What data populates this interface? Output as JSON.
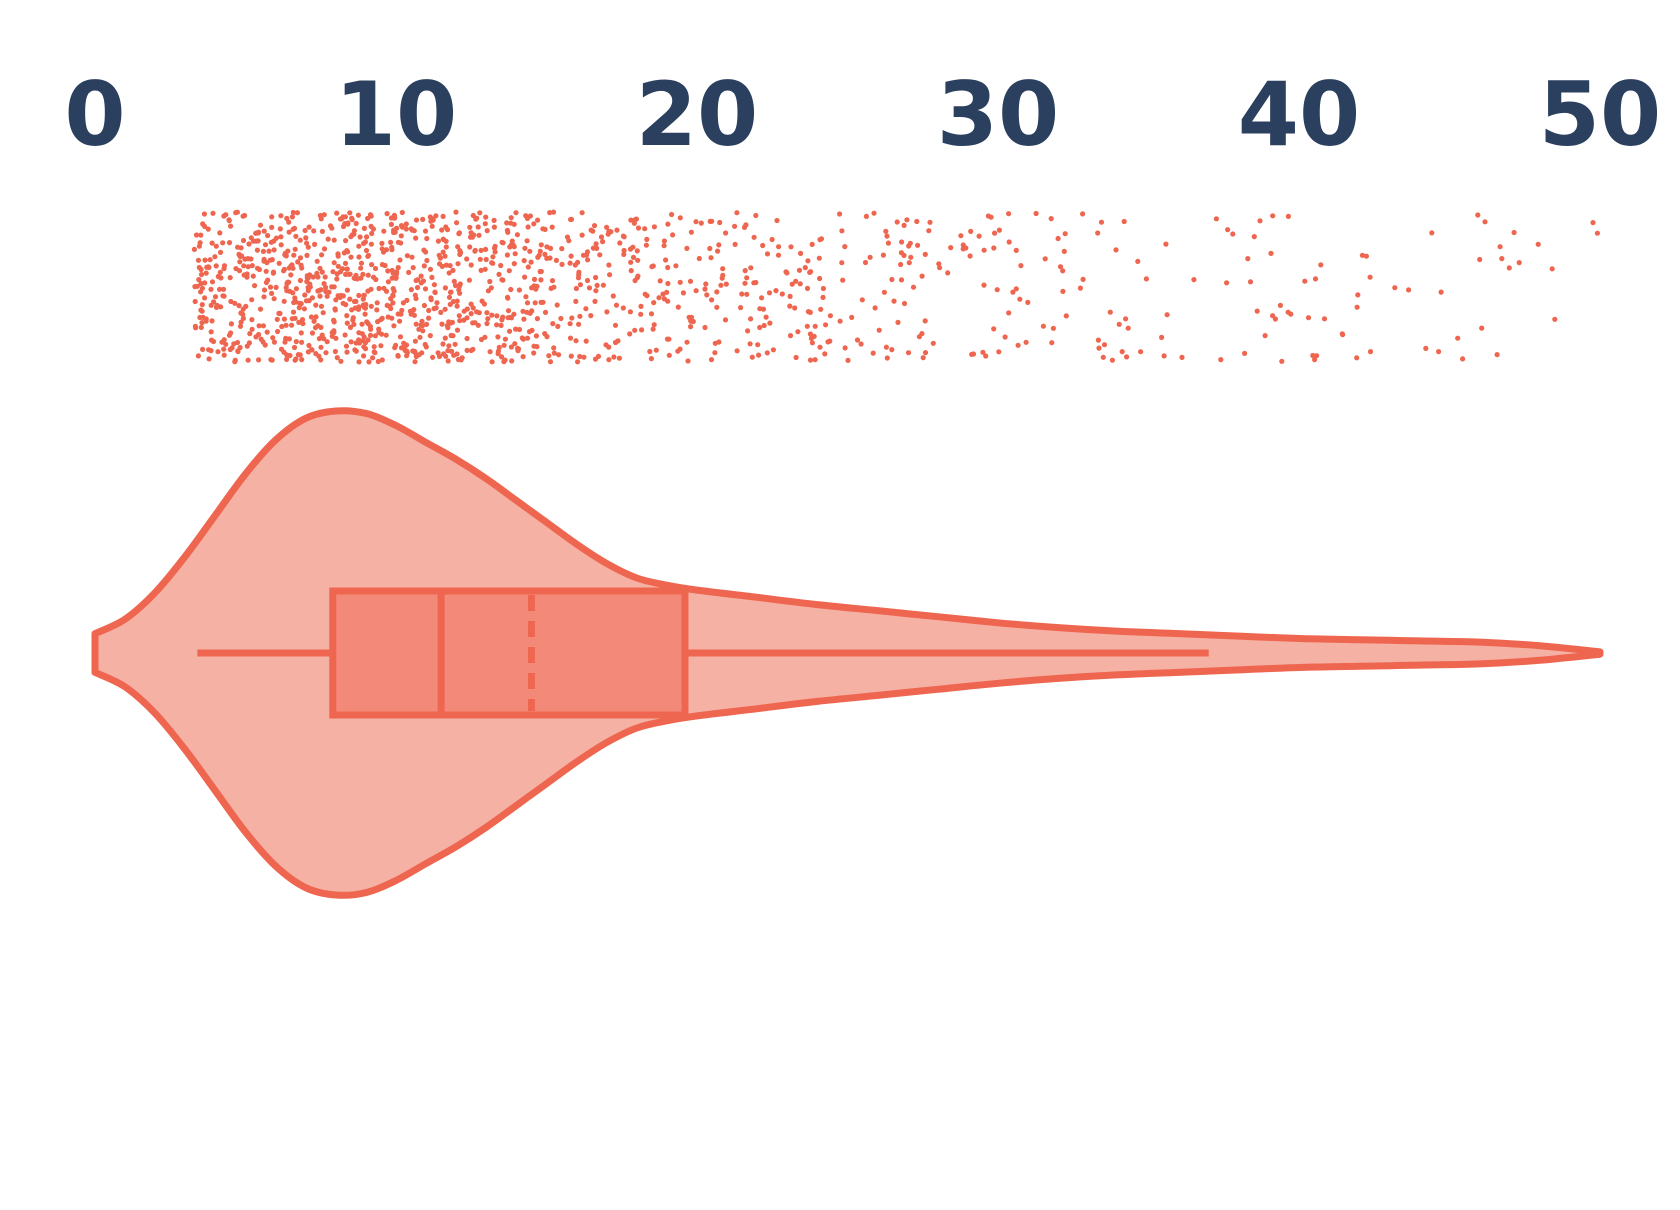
{
  "chart_data": {
    "type": "violin",
    "orientation": "horizontal",
    "title": "",
    "xlabel": "",
    "ylabel": "",
    "xlim": [
      0,
      50
    ],
    "x_ticks": [
      0,
      10,
      20,
      30,
      40,
      50
    ],
    "x_tick_labels": [
      "0",
      "10",
      "20",
      "30",
      "40",
      "50"
    ],
    "x_axis_position": "top",
    "grid": false,
    "legend": "none",
    "colors": {
      "accent": "#ee6650",
      "violin_fill": "#f6b1a5",
      "box_fill": "#f38a79",
      "tick_text": "#2b3f5e"
    },
    "box": {
      "whisker_low": 3.4,
      "q1": 7.9,
      "median": 11.5,
      "mean": 14.5,
      "q3": 19.6,
      "whisker_high": 37.0
    },
    "density_profile": {
      "x": [
        0,
        1,
        2,
        3,
        4,
        5,
        6,
        7,
        8,
        9,
        10,
        11,
        12,
        13,
        14,
        15,
        16,
        17,
        18,
        19,
        20,
        22,
        24,
        26,
        28,
        30,
        32,
        34,
        36,
        38,
        40,
        42,
        44,
        46,
        48,
        50
      ],
      "relative_width": [
        0.08,
        0.14,
        0.25,
        0.4,
        0.57,
        0.74,
        0.88,
        0.97,
        1.0,
        0.99,
        0.94,
        0.87,
        0.8,
        0.72,
        0.63,
        0.54,
        0.45,
        0.37,
        0.31,
        0.28,
        0.26,
        0.23,
        0.2,
        0.175,
        0.15,
        0.125,
        0.105,
        0.09,
        0.08,
        0.07,
        0.06,
        0.055,
        0.05,
        0.045,
        0.03,
        0.005
      ]
    },
    "points": {
      "n": 1400,
      "x_range": [
        3.3,
        50
      ],
      "density_bins": [
        {
          "x": [
            3,
            6
          ],
          "weight": 14
        },
        {
          "x": [
            6,
            9
          ],
          "weight": 17
        },
        {
          "x": [
            9,
            12
          ],
          "weight": 15
        },
        {
          "x": [
            12,
            15
          ],
          "weight": 12
        },
        {
          "x": [
            15,
            18
          ],
          "weight": 7
        },
        {
          "x": [
            18,
            21
          ],
          "weight": 5.5
        },
        {
          "x": [
            21,
            24
          ],
          "weight": 4.5
        },
        {
          "x": [
            24,
            27
          ],
          "weight": 3.3
        },
        {
          "x": [
            27,
            30
          ],
          "weight": 2.6
        },
        {
          "x": [
            30,
            33
          ],
          "weight": 1.9
        },
        {
          "x": [
            33,
            36
          ],
          "weight": 1.4
        },
        {
          "x": [
            36,
            40
          ],
          "weight": 1.1
        },
        {
          "x": [
            40,
            44
          ],
          "weight": 0.9
        },
        {
          "x": [
            44,
            48
          ],
          "weight": 0.8
        },
        {
          "x": [
            48,
            50
          ],
          "weight": 0.4
        }
      ]
    }
  }
}
